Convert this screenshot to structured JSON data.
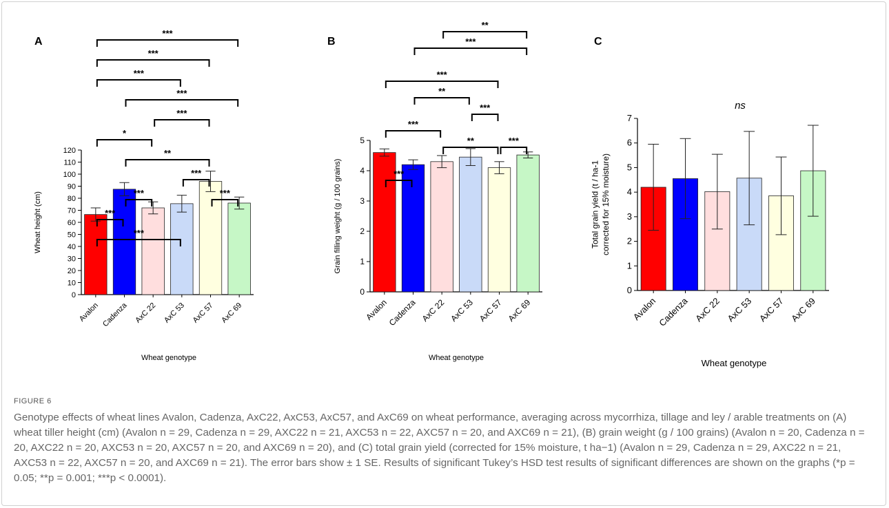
{
  "chart_data": [
    {
      "type": "bar",
      "panel": "A",
      "title": "",
      "categories": [
        "Avalon",
        "Cadenza",
        "AxC 22",
        "AxC 53",
        "AxC 57",
        "AxC 69"
      ],
      "values": [
        66.5,
        87.5,
        72,
        75.5,
        94,
        76
      ],
      "errors": [
        5.5,
        5.5,
        5,
        7,
        8.5,
        5
      ],
      "colors": [
        "#ff0000",
        "#0000ff",
        "#ffdede",
        "#c9daf8",
        "#ffffe0",
        "#c6f7c6"
      ],
      "xlabel": "Wheat genotype",
      "ylabel": "Wheat height (cm)",
      "ylim": [
        0,
        120
      ],
      "yticks": [
        0,
        10,
        20,
        30,
        40,
        50,
        60,
        70,
        80,
        90,
        100,
        110,
        120
      ],
      "significance": [
        {
          "from": 0,
          "to": 1,
          "label": "***"
        },
        {
          "from": 1,
          "to": 2,
          "label": "***"
        },
        {
          "from": 0,
          "to": 3,
          "label": "***"
        },
        {
          "from": 3,
          "to": 4,
          "label": "***"
        },
        {
          "from": 4,
          "to": 5,
          "label": "***"
        },
        {
          "from": 1,
          "to": 4,
          "label": "**"
        },
        {
          "from": 0,
          "to": 2,
          "label": "*"
        },
        {
          "from": 2,
          "to": 4,
          "label": "***"
        },
        {
          "from": 1,
          "to": 5,
          "label": "***"
        },
        {
          "from": 0,
          "to": 3,
          "label": "***"
        },
        {
          "from": 0,
          "to": 4,
          "label": "***"
        },
        {
          "from": 0,
          "to": 5,
          "label": "***"
        }
      ]
    },
    {
      "type": "bar",
      "panel": "B",
      "title": "",
      "categories": [
        "Avalon",
        "Cadenza",
        "AxC 22",
        "AxC 53",
        "AxC 57",
        "AxC 69"
      ],
      "values": [
        4.6,
        4.2,
        4.3,
        4.45,
        4.1,
        4.52
      ],
      "errors": [
        0.12,
        0.16,
        0.2,
        0.28,
        0.2,
        0.1
      ],
      "colors": [
        "#ff0000",
        "#0000ff",
        "#ffdede",
        "#c9daf8",
        "#ffffe0",
        "#c6f7c6"
      ],
      "xlabel": "Wheat genotype",
      "ylabel": "Grain filling weight (g / 100 grains)",
      "ylim": [
        0,
        5
      ],
      "yticks": [
        0,
        1,
        2,
        3,
        4,
        5
      ],
      "significance": [
        {
          "from": 0,
          "to": 1,
          "label": "***"
        },
        {
          "from": 2,
          "to": 4,
          "label": "**"
        },
        {
          "from": 4,
          "to": 5,
          "label": "***"
        },
        {
          "from": 0,
          "to": 2,
          "label": "***"
        },
        {
          "from": 3,
          "to": 4,
          "label": "***"
        },
        {
          "from": 1,
          "to": 3,
          "label": "**"
        },
        {
          "from": 0,
          "to": 4,
          "label": "***"
        },
        {
          "from": 1,
          "to": 5,
          "label": "***"
        },
        {
          "from": 2,
          "to": 5,
          "label": "**"
        }
      ]
    },
    {
      "type": "bar",
      "panel": "C",
      "title": "ns",
      "categories": [
        "Avalon",
        "Cadenza",
        "AxC 22",
        "AxC 53",
        "AxC 57",
        "AxC 69"
      ],
      "values": [
        4.2,
        4.55,
        4.02,
        4.57,
        3.85,
        4.87
      ],
      "errors": [
        1.75,
        1.63,
        1.52,
        1.9,
        1.58,
        1.85
      ],
      "colors": [
        "#ff0000",
        "#0000ff",
        "#ffdede",
        "#c9daf8",
        "#ffffe0",
        "#c6f7c6"
      ],
      "xlabel": "Wheat genotype",
      "ylabel": "Total grain yield (t / ha-1 corrected for 15% moisture)",
      "ylim": [
        0,
        7
      ],
      "yticks": [
        0,
        1,
        2,
        3,
        4,
        5,
        6,
        7
      ],
      "significance": []
    }
  ],
  "figure_label": "FIGURE 6",
  "caption": "Genotype effects of wheat lines Avalon, Cadenza, AxC22, AxC53, AxC57, and AxC69 on wheat performance, averaging across mycorrhiza, tillage and ley / arable treatments on (A) wheat tiller height (cm) (Avalon n = 29, Cadenza n = 29, AXC22 n = 21, AXC53 n = 22, AXC57 n = 20, and AXC69 n = 21), (B) grain weight (g / 100 grains) (Avalon n = 20, Cadenza n = 20, AXC22 n = 20, AXC53 n = 20, AXC57 n = 20, and AXC69 n = 20), and (C) total grain yield (corrected for 15% moisture, t ha−1) (Avalon n = 29, Cadenza n = 29, AXC22 n = 21, AXC53 n = 22, AXC57 n = 20, and AXC69 n = 21). The error bars show ± 1 SE. Results of significant Tukey’s HSD test results of significant differences are shown on the graphs (*p = 0.05; **p = 0.001; ***p < 0.0001)."
}
